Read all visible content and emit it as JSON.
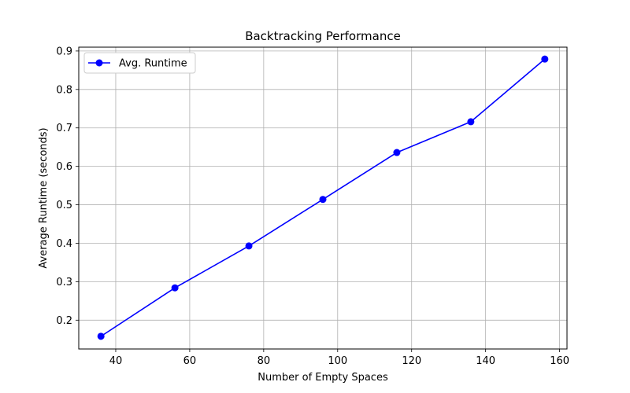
{
  "chart_data": {
    "type": "line",
    "title": "Backtracking Performance",
    "xlabel": "Number of Empty Spaces",
    "ylabel": "Average Runtime (seconds)",
    "xlim": [
      30,
      162
    ],
    "ylim": [
      0.125,
      0.91
    ],
    "xticks": [
      40,
      60,
      80,
      100,
      120,
      140,
      160
    ],
    "yticks": [
      0.2,
      0.3,
      0.4,
      0.5,
      0.6,
      0.7,
      0.8,
      0.9
    ],
    "grid": true,
    "legend_position": "top-left",
    "series": [
      {
        "name": "Avg. Runtime",
        "color": "#0000ff",
        "marker": "circle",
        "x": [
          36,
          56,
          76,
          96,
          116,
          136,
          156
        ],
        "y": [
          0.158,
          0.284,
          0.393,
          0.514,
          0.636,
          0.716,
          0.879
        ]
      }
    ]
  }
}
